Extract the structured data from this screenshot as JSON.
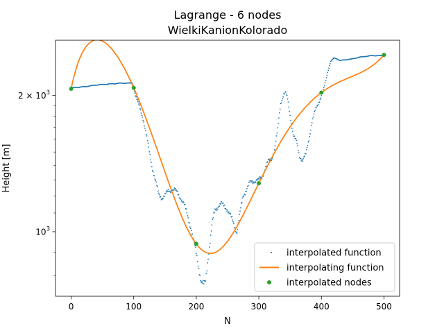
{
  "chart_data": {
    "type": "line",
    "title_line1": "Lagrange - 6 nodes",
    "title_line2": "WielkiKanionKolorado",
    "xlabel": "N",
    "ylabel": "Height [m]",
    "xlim": [
      -25,
      525
    ],
    "ylim": [
      720,
      2650
    ],
    "yscale": "log",
    "x_ticks": [
      0,
      100,
      200,
      300,
      400,
      500
    ],
    "x_tick_labels": [
      "0",
      "100",
      "200",
      "300",
      "400",
      "500"
    ],
    "y_major_ticks": [
      1000,
      2000
    ],
    "y_major_tick_labels": [
      {
        "base": "10",
        "exp": "3",
        "prefix": ""
      },
      {
        "base": "10",
        "exp": "3",
        "prefix": "2 × "
      }
    ],
    "y_minor_ticks": [
      800,
      900,
      1100,
      1200,
      1300,
      1400,
      1500,
      1600,
      1700,
      1800,
      1900
    ],
    "legend": {
      "placement": "lower-right",
      "entries": [
        "interpolated function",
        "interpolating function",
        "interpolated nodes"
      ]
    },
    "colors": {
      "interpolated_function": "#1f77b4",
      "interpolating_function": "#ff7f0e",
      "interpolated_nodes": "#2ca02c"
    },
    "interpolated_function_anchors": {
      "x": [
        0,
        20,
        40,
        60,
        80,
        98,
        100,
        104,
        110,
        115,
        120,
        125,
        130,
        135,
        140,
        145,
        150,
        155,
        160,
        165,
        170,
        175,
        180,
        185,
        190,
        195,
        200,
        205,
        208,
        212,
        215,
        218,
        222,
        226,
        230,
        235,
        240,
        245,
        250,
        255,
        260,
        265,
        270,
        275,
        280,
        285,
        290,
        295,
        300,
        305,
        310,
        315,
        320,
        325,
        330,
        335,
        340,
        343,
        346,
        350,
        355,
        360,
        365,
        370,
        375,
        380,
        385,
        390,
        395,
        400,
        405,
        410,
        415,
        420,
        425,
        430,
        440,
        450,
        460,
        470,
        480,
        490,
        500
      ],
      "y": [
        2080,
        2090,
        2110,
        2120,
        2130,
        2130,
        2080,
        1980,
        1870,
        1780,
        1640,
        1500,
        1380,
        1290,
        1210,
        1190,
        1200,
        1230,
        1240,
        1235,
        1220,
        1190,
        1150,
        1100,
        1040,
        960,
        900,
        820,
        770,
        760,
        780,
        860,
        950,
        1050,
        1120,
        1140,
        1150,
        1140,
        1120,
        1080,
        1040,
        1000,
        1100,
        1200,
        1240,
        1280,
        1290,
        1300,
        1300,
        1320,
        1380,
        1430,
        1440,
        1520,
        1680,
        1920,
        2020,
        2030,
        1960,
        1810,
        1640,
        1580,
        1470,
        1440,
        1480,
        1600,
        1750,
        1850,
        1920,
        2000,
        2100,
        2250,
        2380,
        2420,
        2410,
        2390,
        2400,
        2410,
        2430,
        2440,
        2450,
        2450,
        2450
      ]
    },
    "interpolating_function": {
      "nodes_x": [
        0,
        100,
        200,
        300,
        400,
        500
      ],
      "nodes_y": [
        2070,
        2080,
        940,
        1280,
        2030,
        2460
      ]
    },
    "interpolated_nodes": {
      "x": [
        0,
        100,
        200,
        300,
        400,
        500
      ],
      "y": [
        2070,
        2080,
        940,
        1280,
        2030,
        2460
      ]
    }
  }
}
